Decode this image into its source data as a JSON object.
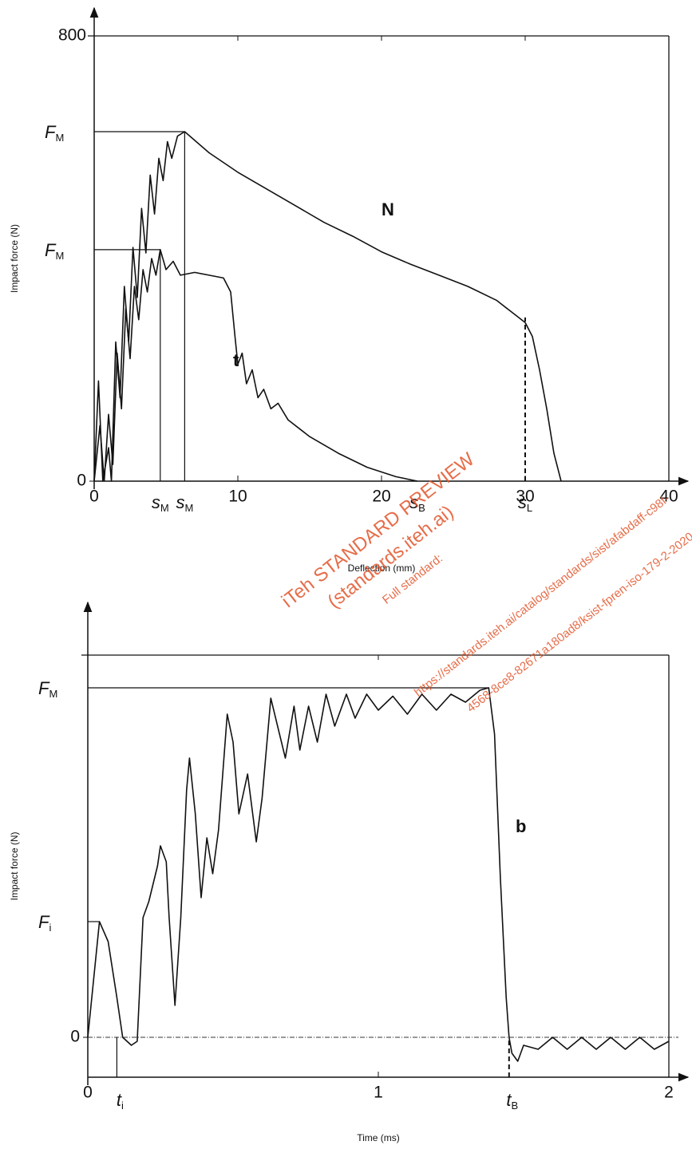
{
  "chart_data": [
    {
      "type": "line",
      "x_label": "Deflection (mm)",
      "y_label": "Impact force (N)",
      "xlim": [
        0,
        40
      ],
      "ylim": [
        0,
        800
      ],
      "xticks": [
        0,
        10,
        20,
        30,
        40
      ],
      "yticks": [
        0,
        800
      ],
      "series": [
        {
          "name": "N",
          "color": "#111111",
          "x": [
            0,
            0.3,
            0.6,
            1,
            1.2,
            1.5,
            1.8,
            2.1,
            2.4,
            2.7,
            3,
            3.3,
            3.6,
            3.9,
            4.2,
            4.5,
            4.8,
            5.1,
            5.4,
            5.8,
            6.3,
            8,
            10,
            12,
            14,
            16,
            18,
            20,
            22,
            24,
            26,
            28,
            29,
            30,
            30.5,
            31,
            31.5,
            32,
            32.5
          ],
          "values": [
            0,
            180,
            0,
            60,
            0,
            250,
            150,
            350,
            250,
            420,
            330,
            490,
            410,
            550,
            480,
            580,
            540,
            610,
            580,
            620,
            628,
            590,
            555,
            525,
            495,
            465,
            440,
            412,
            390,
            370,
            350,
            325,
            305,
            285,
            260,
            200,
            130,
            50,
            0
          ]
        },
        {
          "name": "t",
          "color": "#111111",
          "x": [
            0,
            0.4,
            0.7,
            1,
            1.3,
            1.6,
            1.9,
            2.2,
            2.5,
            2.8,
            3.1,
            3.4,
            3.7,
            4,
            4.3,
            4.6,
            5,
            5.5,
            6,
            7,
            8,
            9,
            9.5,
            9.8,
            10,
            10.3,
            10.6,
            11,
            11.4,
            11.8,
            12.3,
            12.8,
            13.5,
            15,
            17,
            19,
            21,
            22.5
          ],
          "values": [
            0,
            100,
            0,
            120,
            30,
            230,
            130,
            310,
            220,
            350,
            290,
            380,
            340,
            400,
            370,
            416,
            380,
            395,
            370,
            375,
            370,
            365,
            340,
            260,
            210,
            230,
            175,
            200,
            150,
            165,
            130,
            140,
            110,
            80,
            50,
            25,
            8,
            0
          ]
        }
      ],
      "annotations": [
        {
          "text": "F",
          "sub": "M",
          "y": 628,
          "x": 6.3
        },
        {
          "text": "F",
          "sub": "M",
          "y": 416,
          "x": 4.6
        },
        {
          "text": "s",
          "sub": "M",
          "x": 4.6,
          "y": 416
        },
        {
          "text": "s",
          "sub": "M",
          "x": 6.3,
          "y": 628
        },
        {
          "text": "s",
          "sub": "B",
          "x": 22.5
        },
        {
          "text": "s",
          "sub": "L",
          "x": 30,
          "y": 294,
          "dash": true
        }
      ]
    },
    {
      "type": "line",
      "x_label": "Time (ms)",
      "y_label": "Impact force (N)",
      "xlim": [
        0,
        2
      ],
      "ylim": [
        -100,
        958
      ],
      "xticks": [
        0,
        1,
        2
      ],
      "yticks": [
        0
      ],
      "zero_line": true,
      "series": [
        {
          "name": "b",
          "color": "#111111",
          "x": [
            0,
            0.04,
            0.07,
            0.1,
            0.12,
            0.15,
            0.17,
            0.19,
            0.21,
            0.24,
            0.25,
            0.27,
            0.28,
            0.3,
            0.32,
            0.34,
            0.35,
            0.37,
            0.39,
            0.41,
            0.43,
            0.45,
            0.48,
            0.5,
            0.52,
            0.55,
            0.58,
            0.6,
            0.63,
            0.66,
            0.68,
            0.71,
            0.73,
            0.76,
            0.79,
            0.82,
            0.85,
            0.89,
            0.92,
            0.96,
            1,
            1.05,
            1.1,
            1.15,
            1.2,
            1.25,
            1.3,
            1.35,
            1.38,
            1.4,
            1.42,
            1.44,
            1.45,
            1.46,
            1.48,
            1.5,
            1.55,
            1.6,
            1.65,
            1.7,
            1.75,
            1.8,
            1.85,
            1.9,
            1.95,
            2
          ],
          "values": [
            0,
            290,
            240,
            100,
            0,
            -20,
            -10,
            300,
            340,
            430,
            480,
            440,
            300,
            80,
            300,
            620,
            700,
            560,
            350,
            500,
            410,
            520,
            810,
            740,
            560,
            660,
            490,
            600,
            850,
            760,
            700,
            830,
            720,
            830,
            740,
            860,
            780,
            860,
            800,
            860,
            820,
            855,
            810,
            860,
            820,
            860,
            840,
            870,
            876,
            760,
            400,
            100,
            0,
            -40,
            -60,
            -20,
            -30,
            0,
            -30,
            0,
            -30,
            0,
            -30,
            0,
            -30,
            -10
          ]
        }
      ],
      "annotations": [
        {
          "text": "F",
          "sub": "M",
          "y": 876,
          "x": 1.38
        },
        {
          "text": "F",
          "sub": "i",
          "y": 290,
          "x": 0.04
        },
        {
          "text": "t",
          "sub": "i",
          "x": 0.1,
          "y": 0
        },
        {
          "text": "t",
          "sub": "B",
          "x": 1.45,
          "y": 0,
          "dash": true
        }
      ]
    }
  ],
  "watermark": [
    "iTeh STANDARD PREVIEW",
    "(standards.iteh.ai)",
    "Full standard:",
    "https://standards.iteh.ai/catalog/standards/sist/afabdaff-c98f-",
    "4568-8ce8-82671a180ad8/ksist-fpren-iso-179-2-2020"
  ]
}
